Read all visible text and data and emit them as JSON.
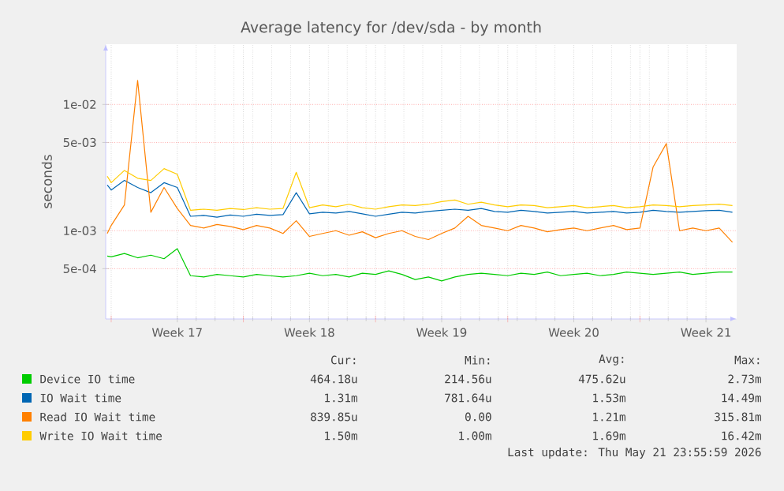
{
  "chart_data": {
    "type": "line",
    "title": "Average latency for /dev/sda - by month",
    "ylabel": "seconds",
    "log": "y",
    "grid": true,
    "legend": "bottom",
    "xlim": [
      "2026-04-19T17:00",
      "2026-05-23T03:00"
    ],
    "ylim": [
      0.0002,
      0.03
    ],
    "xticks": [
      {
        "value": "2026-04-20T00:00",
        "label": null
      },
      {
        "value": "2026-04-23T12:00",
        "label": "Week 17"
      },
      {
        "value": "2026-04-27T00:00",
        "label": null
      },
      {
        "value": "2026-04-30T12:00",
        "label": "Week 18"
      },
      {
        "value": "2026-05-04T00:00",
        "label": null
      },
      {
        "value": "2026-05-07T12:00",
        "label": "Week 19"
      },
      {
        "value": "2026-05-11T00:00",
        "label": null
      },
      {
        "value": "2026-05-14T12:00",
        "label": "Week 20"
      },
      {
        "value": "2026-05-18T00:00",
        "label": null
      },
      {
        "value": "2026-05-21T12:00",
        "label": "Week 21"
      }
    ],
    "yticks": [
      {
        "value": 0.0005,
        "label": "5e-04"
      },
      {
        "value": 0.001,
        "label": "1e-03"
      },
      {
        "value": 0.005,
        "label": "5e-03"
      },
      {
        "value": 0.01,
        "label": "1e-02"
      }
    ],
    "x": [
      "2026-04-19T19:00",
      "2026-04-20T00:00",
      "2026-04-20T16:48",
      "2026-04-21T09:36",
      "2026-04-22T02:24",
      "2026-04-22T19:12",
      "2026-04-23T12:00",
      "2026-04-24T04:48",
      "2026-04-24T21:36",
      "2026-04-25T14:24",
      "2026-04-26T07:12",
      "2026-04-27T00:00",
      "2026-04-27T16:48",
      "2026-04-28T09:36",
      "2026-04-29T02:24",
      "2026-04-29T19:12",
      "2026-04-30T12:00",
      "2026-05-01T04:48",
      "2026-05-01T21:36",
      "2026-05-02T14:24",
      "2026-05-03T07:12",
      "2026-05-04T00:00",
      "2026-05-04T16:48",
      "2026-05-05T09:36",
      "2026-05-06T02:24",
      "2026-05-06T19:12",
      "2026-05-07T12:00",
      "2026-05-08T04:48",
      "2026-05-08T21:36",
      "2026-05-09T14:24",
      "2026-05-10T07:12",
      "2026-05-11T00:00",
      "2026-05-11T16:48",
      "2026-05-12T09:36",
      "2026-05-13T02:24",
      "2026-05-13T19:12",
      "2026-05-14T12:00",
      "2026-05-15T04:48",
      "2026-05-15T21:36",
      "2026-05-16T14:24",
      "2026-05-17T07:12",
      "2026-05-18T00:00",
      "2026-05-18T16:48",
      "2026-05-19T09:36",
      "2026-05-20T02:24",
      "2026-05-20T19:12",
      "2026-05-21T12:00",
      "2026-05-22T04:48",
      "2026-05-22T21:36"
    ],
    "series": [
      {
        "name": "Device IO time",
        "color": "#00cc00",
        "values": [
          0.00063,
          0.00062,
          0.00066,
          0.00061,
          0.00064,
          0.0006,
          0.00072,
          0.00044,
          0.00043,
          0.00045,
          0.00044,
          0.00043,
          0.00045,
          0.00044,
          0.00043,
          0.00044,
          0.00046,
          0.00044,
          0.00045,
          0.00043,
          0.00046,
          0.00045,
          0.00048,
          0.00045,
          0.00041,
          0.00043,
          0.0004,
          0.00043,
          0.00045,
          0.00046,
          0.00045,
          0.00044,
          0.00046,
          0.00045,
          0.00047,
          0.00044,
          0.00045,
          0.00046,
          0.00044,
          0.00045,
          0.00047,
          0.00046,
          0.00045,
          0.00046,
          0.00047,
          0.00045,
          0.00046,
          0.00047,
          0.00047
        ]
      },
      {
        "name": "IO Wait time",
        "color": "#0066b3",
        "values": [
          0.0023,
          0.0021,
          0.0025,
          0.0022,
          0.002,
          0.0024,
          0.0022,
          0.0013,
          0.00132,
          0.00128,
          0.00133,
          0.0013,
          0.00135,
          0.00132,
          0.00134,
          0.002,
          0.00136,
          0.0014,
          0.00138,
          0.00142,
          0.00136,
          0.0013,
          0.00135,
          0.0014,
          0.00138,
          0.00142,
          0.00145,
          0.00148,
          0.00145,
          0.0015,
          0.00142,
          0.0014,
          0.00145,
          0.00142,
          0.00138,
          0.0014,
          0.00142,
          0.00138,
          0.0014,
          0.00142,
          0.00138,
          0.0014,
          0.00145,
          0.00142,
          0.0014,
          0.00142,
          0.00144,
          0.00145,
          0.0014
        ]
      },
      {
        "name": "Read IO Wait time",
        "color": "#ff8000",
        "values": [
          0.00095,
          0.0011,
          0.0016,
          0.0155,
          0.0014,
          0.0022,
          0.0015,
          0.0011,
          0.00105,
          0.00112,
          0.00108,
          0.00102,
          0.0011,
          0.00105,
          0.00095,
          0.0012,
          0.0009,
          0.00095,
          0.001,
          0.00092,
          0.00098,
          0.00088,
          0.00095,
          0.001,
          0.0009,
          0.00085,
          0.00095,
          0.00105,
          0.0013,
          0.0011,
          0.00105,
          0.001,
          0.0011,
          0.00105,
          0.00098,
          0.00102,
          0.00105,
          0.001,
          0.00105,
          0.0011,
          0.00102,
          0.00105,
          0.0032,
          0.0049,
          0.001,
          0.00105,
          0.001,
          0.00105,
          0.00081
        ]
      },
      {
        "name": "Write IO Wait time",
        "color": "#ffcc00",
        "values": [
          0.0027,
          0.0024,
          0.003,
          0.0026,
          0.0025,
          0.0031,
          0.0028,
          0.00145,
          0.00148,
          0.00145,
          0.0015,
          0.00147,
          0.00152,
          0.00148,
          0.0015,
          0.0029,
          0.00152,
          0.0016,
          0.00155,
          0.00162,
          0.00152,
          0.00148,
          0.00155,
          0.0016,
          0.00158,
          0.00162,
          0.0017,
          0.00175,
          0.00162,
          0.00168,
          0.0016,
          0.00155,
          0.0016,
          0.00158,
          0.00152,
          0.00155,
          0.00158,
          0.00152,
          0.00155,
          0.00158,
          0.00152,
          0.00155,
          0.0016,
          0.00158,
          0.00155,
          0.00158,
          0.0016,
          0.00162,
          0.00158
        ]
      }
    ],
    "annotations": [
      "Cur:",
      "Min:",
      "Avg:",
      "Max:",
      "464.18u",
      "214.56u",
      "475.62u",
      "2.73m",
      "1.31m",
      "781.64u",
      "1.53m",
      "14.49m",
      "839.85u",
      "0.00",
      "1.21m",
      "315.81m",
      "1.50m",
      "1.00m",
      "1.69m",
      "16.42m",
      "Last update: Thu May 21 23:55:59 2026"
    ]
  }
}
